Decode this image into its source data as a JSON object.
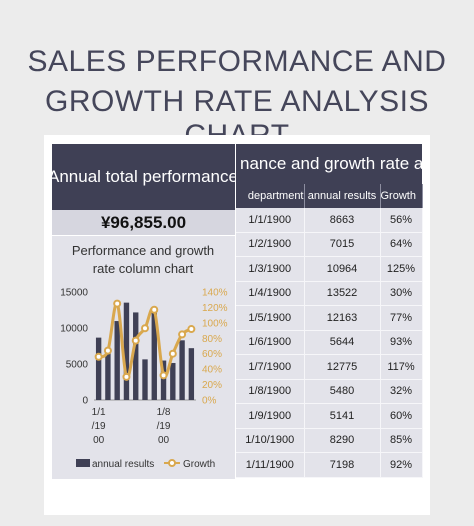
{
  "page": {
    "title_line1": "SALES PERFORMANCE AND",
    "title_line2": "GROWTH RATE ANALYSIS CHART"
  },
  "left_panel": {
    "header": "Annual total performance",
    "total_value": "¥96,855.00"
  },
  "right_panel": {
    "header": "nance and growth rate a",
    "columns": [
      "department",
      "annual results",
      "Growth"
    ],
    "rows": [
      [
        "1/1/1900",
        "8663",
        "56%"
      ],
      [
        "1/2/1900",
        "7015",
        "64%"
      ],
      [
        "1/3/1900",
        "10964",
        "125%"
      ],
      [
        "1/4/1900",
        "13522",
        "30%"
      ],
      [
        "1/5/1900",
        "12163",
        "77%"
      ],
      [
        "1/6/1900",
        "5644",
        "93%"
      ],
      [
        "1/7/1900",
        "12775",
        "117%"
      ],
      [
        "1/8/1900",
        "5480",
        "32%"
      ],
      [
        "1/9/1900",
        "5141",
        "60%"
      ],
      [
        "1/10/1900",
        "8290",
        "85%"
      ],
      [
        "1/11/1900",
        "7198",
        "92%"
      ]
    ]
  },
  "colors": {
    "bar": "#3f4055",
    "line": "#d9a84e",
    "header_bg": "#3f4055",
    "cell_bg": "#e3e3ea"
  },
  "chart_data": {
    "type": "bar",
    "title": "Performance and growth rate column chart",
    "title_line1": "Performance and growth",
    "title_line2": "rate column chart",
    "categories": [
      "1/1/1900",
      "1/2/1900",
      "1/3/1900",
      "1/4/1900",
      "1/5/1900",
      "1/6/1900",
      "1/7/1900",
      "1/8/1900",
      "1/9/1900",
      "1/10/1900",
      "1/11/1900"
    ],
    "series": [
      {
        "name": "annual results",
        "type": "bar",
        "axis": "left",
        "values": [
          8663,
          7015,
          10964,
          13522,
          12163,
          5644,
          12775,
          5480,
          5141,
          8290,
          7198
        ]
      },
      {
        "name": "Growth",
        "type": "line",
        "axis": "right",
        "values": [
          56,
          64,
          125,
          30,
          77,
          93,
          117,
          32,
          60,
          85,
          92
        ]
      }
    ],
    "ylim": [
      0,
      15000
    ],
    "y_ticks": [
      "0",
      "5000",
      "10000",
      "15000"
    ],
    "y2lim": [
      0,
      140
    ],
    "y2_ticks": [
      "0%",
      "20%",
      "40%",
      "60%",
      "80%",
      "100%",
      "120%",
      "140%"
    ],
    "x_tick_labels": [
      [
        "1/1",
        "/19",
        "00"
      ],
      [
        "1/8",
        "/19",
        "00"
      ]
    ],
    "legend_position": "bottom",
    "grid": false
  }
}
